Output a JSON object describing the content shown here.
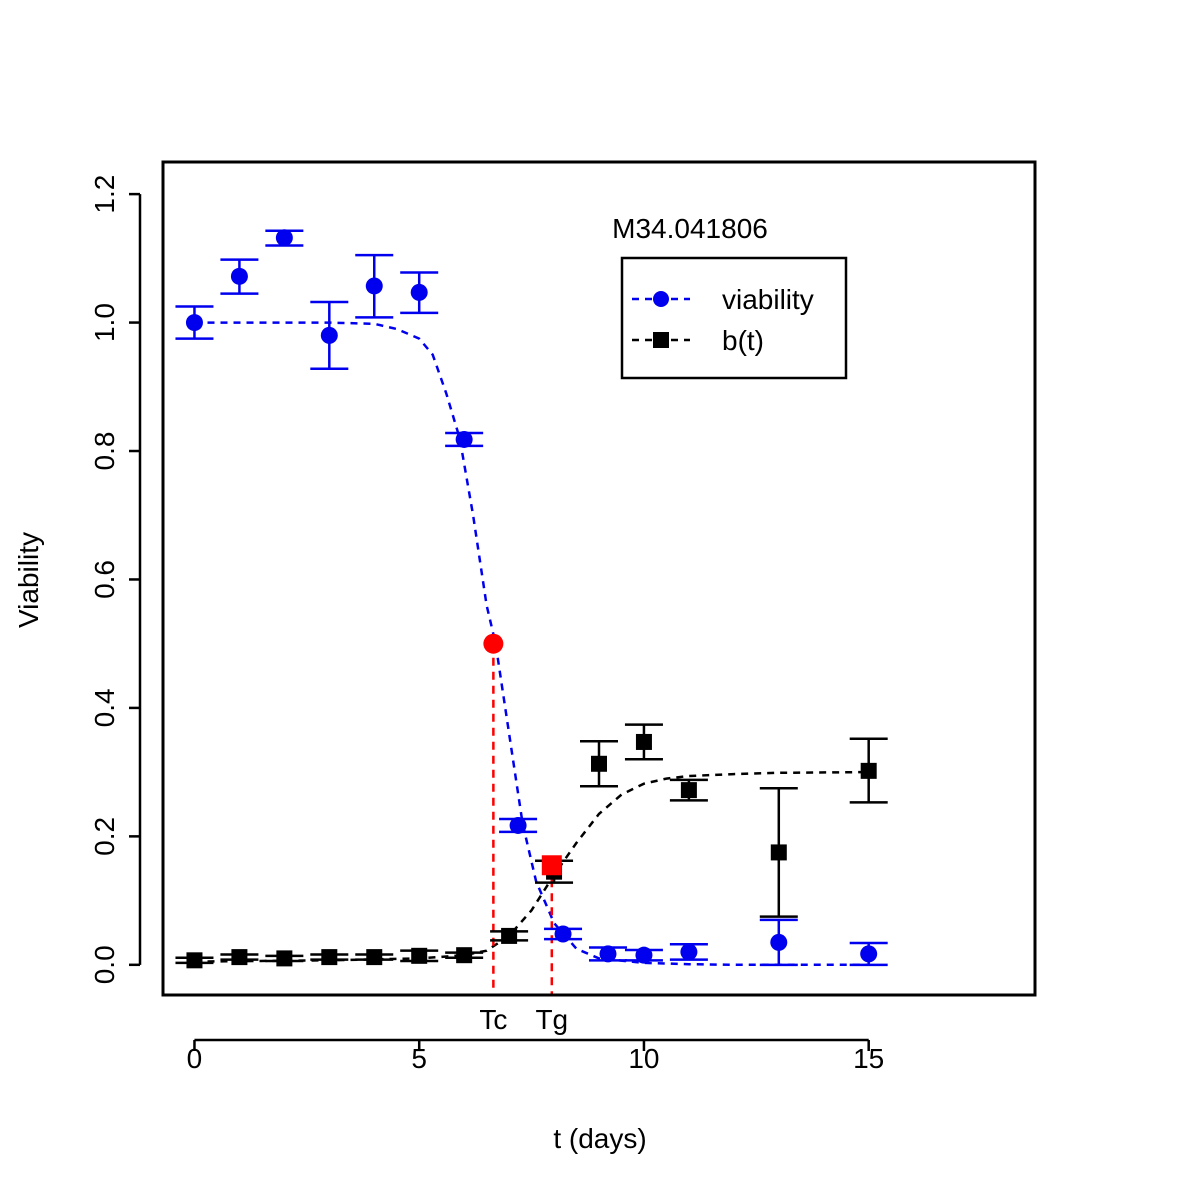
{
  "chart_data": {
    "type": "scatter",
    "title": "M34.041806",
    "xlabel": "t (days)",
    "ylabel": "Viability",
    "xlim": [
      -0.7,
      18.7
    ],
    "ylim": [
      -0.047,
      1.25
    ],
    "x_ticks": [
      0,
      5,
      10,
      15
    ],
    "y_ticks": [
      0.0,
      0.2,
      0.4,
      0.6,
      0.8,
      1.0,
      1.2
    ],
    "x_tick_labels": [
      "0",
      "5",
      "10",
      "15"
    ],
    "y_tick_labels": [
      "0.0",
      "0.2",
      "0.4",
      "0.6",
      "0.8",
      "1.0",
      "1.2"
    ],
    "grid": false,
    "legend_position": "top-right",
    "series": [
      {
        "name": "viability",
        "color": "#0000ee",
        "marker": "circle",
        "points": [
          {
            "x": 0,
            "y": 1.0,
            "lo": 0.975,
            "hi": 1.025
          },
          {
            "x": 1,
            "y": 1.072,
            "lo": 1.045,
            "hi": 1.098
          },
          {
            "x": 2,
            "y": 1.132,
            "lo": 1.12,
            "hi": 1.143
          },
          {
            "x": 3,
            "y": 0.98,
            "lo": 0.928,
            "hi": 1.032
          },
          {
            "x": 4,
            "y": 1.057,
            "lo": 1.008,
            "hi": 1.105
          },
          {
            "x": 5,
            "y": 1.047,
            "lo": 1.015,
            "hi": 1.078
          },
          {
            "x": 6,
            "y": 0.818,
            "lo": 0.808,
            "hi": 0.828
          },
          {
            "x": 7.2,
            "y": 0.217,
            "lo": 0.207,
            "hi": 0.227
          },
          {
            "x": 8.2,
            "y": 0.048,
            "lo": 0.04,
            "hi": 0.056
          },
          {
            "x": 9.2,
            "y": 0.017,
            "lo": 0.007,
            "hi": 0.027
          },
          {
            "x": 10,
            "y": 0.015,
            "lo": 0.007,
            "hi": 0.023
          },
          {
            "x": 11,
            "y": 0.02,
            "lo": 0.008,
            "hi": 0.032
          },
          {
            "x": 13,
            "y": 0.035,
            "lo": 0.0,
            "hi": 0.07
          },
          {
            "x": 15,
            "y": 0.017,
            "lo": 0.0,
            "hi": 0.034
          }
        ],
        "fit_curve": [
          [
            0,
            1.0
          ],
          [
            1,
            1.0
          ],
          [
            2,
            1.0
          ],
          [
            3,
            1.0
          ],
          [
            4,
            0.998
          ],
          [
            4.5,
            0.99
          ],
          [
            5,
            0.975
          ],
          [
            5.3,
            0.95
          ],
          [
            5.6,
            0.89
          ],
          [
            5.9,
            0.82
          ],
          [
            6.2,
            0.7
          ],
          [
            6.5,
            0.56
          ],
          [
            6.7,
            0.5
          ],
          [
            7.0,
            0.36
          ],
          [
            7.3,
            0.22
          ],
          [
            7.6,
            0.13
          ],
          [
            8.0,
            0.065
          ],
          [
            8.5,
            0.025
          ],
          [
            9.0,
            0.01
          ],
          [
            10,
            0.003
          ],
          [
            11,
            0.001
          ],
          [
            12,
            0.0
          ],
          [
            15,
            0.0
          ]
        ]
      },
      {
        "name": "b(t)",
        "color": "#000000",
        "marker": "square",
        "points": [
          {
            "x": 0,
            "y": 0.007,
            "lo": 0.003,
            "hi": 0.011
          },
          {
            "x": 1,
            "y": 0.012,
            "lo": 0.008,
            "hi": 0.016
          },
          {
            "x": 2,
            "y": 0.01,
            "lo": 0.006,
            "hi": 0.014
          },
          {
            "x": 3,
            "y": 0.012,
            "lo": 0.008,
            "hi": 0.016
          },
          {
            "x": 4,
            "y": 0.012,
            "lo": 0.008,
            "hi": 0.016
          },
          {
            "x": 5,
            "y": 0.014,
            "lo": 0.006,
            "hi": 0.022
          },
          {
            "x": 6,
            "y": 0.015,
            "lo": 0.011,
            "hi": 0.019
          },
          {
            "x": 7,
            "y": 0.045,
            "lo": 0.038,
            "hi": 0.052
          },
          {
            "x": 8,
            "y": 0.145,
            "lo": 0.128,
            "hi": 0.162
          },
          {
            "x": 9,
            "y": 0.313,
            "lo": 0.278,
            "hi": 0.348
          },
          {
            "x": 10,
            "y": 0.347,
            "lo": 0.32,
            "hi": 0.374
          },
          {
            "x": 11,
            "y": 0.272,
            "lo": 0.256,
            "hi": 0.288
          },
          {
            "x": 13,
            "y": 0.175,
            "lo": 0.075,
            "hi": 0.275
          },
          {
            "x": 15,
            "y": 0.302,
            "lo": 0.253,
            "hi": 0.352
          }
        ],
        "fit_curve": [
          [
            0,
            0.005
          ],
          [
            3,
            0.007
          ],
          [
            5,
            0.01
          ],
          [
            6,
            0.015
          ],
          [
            6.5,
            0.022
          ],
          [
            7.0,
            0.045
          ],
          [
            7.5,
            0.085
          ],
          [
            8.0,
            0.14
          ],
          [
            8.5,
            0.19
          ],
          [
            9.0,
            0.235
          ],
          [
            9.5,
            0.265
          ],
          [
            10,
            0.282
          ],
          [
            10.5,
            0.29
          ],
          [
            11,
            0.294
          ],
          [
            12,
            0.297
          ],
          [
            13,
            0.299
          ],
          [
            15,
            0.3
          ]
        ]
      }
    ],
    "annotations": [
      {
        "label": "Tc",
        "x": 6.65,
        "y": 0.5,
        "color": "#ff0000",
        "marker": "circle"
      },
      {
        "label": "Tg",
        "x": 7.95,
        "y": 0.155,
        "color": "#ff0000",
        "marker": "square"
      }
    ]
  }
}
